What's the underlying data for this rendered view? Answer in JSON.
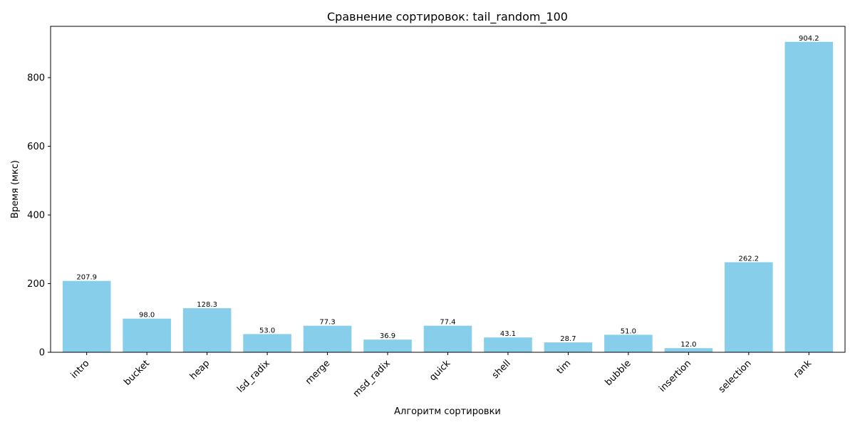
{
  "chart_data": {
    "type": "bar",
    "title": "Сравнение сортировок: tail_random_100",
    "xlabel": "Алгоритм сортировки",
    "ylabel": "Время (мкс)",
    "categories": [
      "intro",
      "bucket",
      "heap",
      "lsd_radix",
      "merge",
      "msd_radix",
      "quick",
      "shell",
      "tim",
      "bubble",
      "insertion",
      "selection",
      "rank"
    ],
    "values": [
      207.9,
      98.0,
      128.3,
      53.0,
      77.3,
      36.9,
      77.4,
      43.1,
      28.7,
      51.0,
      12.0,
      262.2,
      904.2
    ],
    "value_labels": [
      "207.9",
      "98.0",
      "128.3",
      "53.0",
      "77.3",
      "36.9",
      "77.4",
      "43.1",
      "28.7",
      "51.0",
      "12.0",
      "262.2",
      "904.2"
    ],
    "yticks": [
      0,
      200,
      400,
      600,
      800
    ],
    "ytick_labels": [
      "0",
      "200",
      "400",
      "600",
      "800"
    ],
    "ylim": [
      0,
      949.41
    ],
    "grid": false,
    "legend": "none",
    "bar_color": "#87ceeb"
  }
}
